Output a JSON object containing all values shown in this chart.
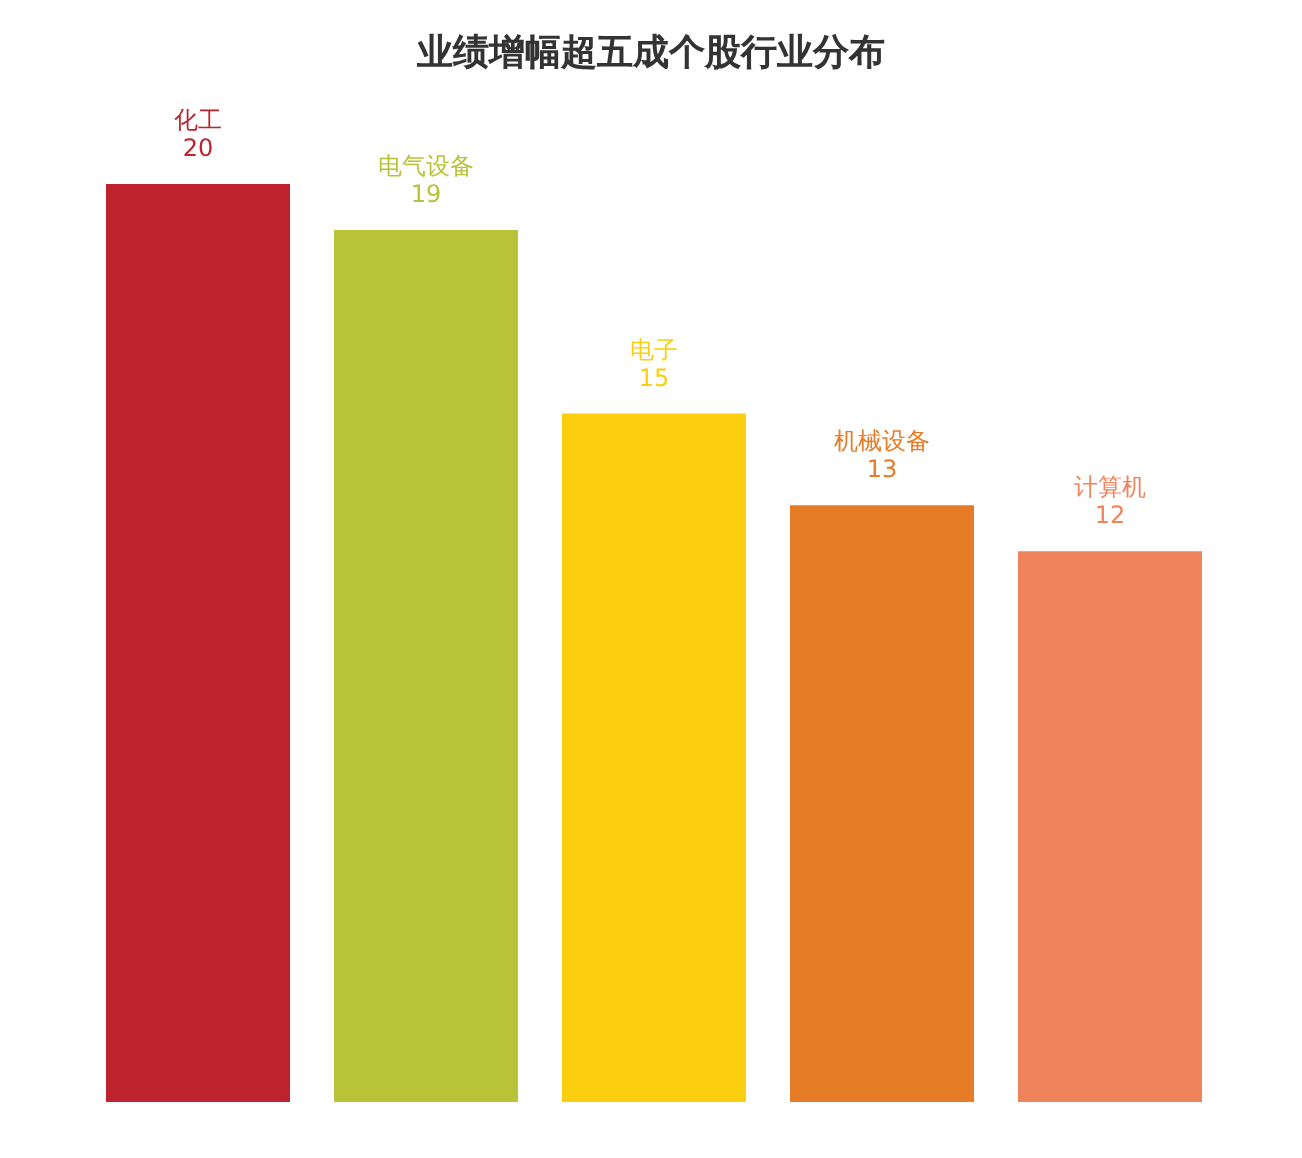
{
  "chart_data": {
    "type": "bar",
    "title": "业绩增幅超五成个股行业分布",
    "categories": [
      "化工",
      "电气设备",
      "电子",
      "机械设备",
      "计算机"
    ],
    "values": [
      20,
      19,
      15,
      13,
      12
    ],
    "colors": [
      "#be222c",
      "#b8c337",
      "#fbcf10",
      "#e67c26",
      "#ef845c"
    ],
    "data_labels": true
  }
}
